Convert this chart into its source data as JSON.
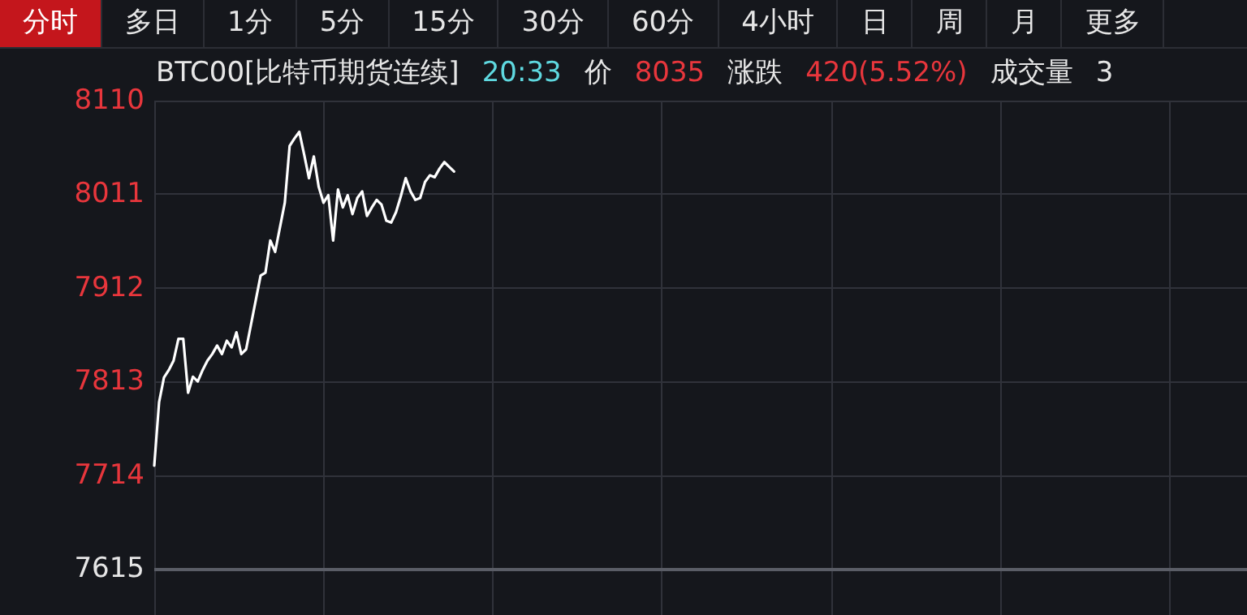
{
  "chart_data": {
    "type": "line",
    "title": "BTC00[比特币期货连续]",
    "annotations": [
      "分时",
      "多日",
      "1分",
      "5分",
      "15分",
      "30分",
      "60分",
      "4小时",
      "日",
      "周",
      "月",
      "更多",
      "20:33",
      "价",
      "8035",
      "涨跌",
      "420(5.52%)",
      "成交量",
      "3"
    ],
    "categories": [
      null,
      null,
      null,
      null,
      null,
      null,
      null,
      null,
      null,
      null,
      null,
      null,
      null,
      null,
      null,
      null,
      null,
      null,
      null,
      null,
      null,
      null,
      null,
      null,
      null,
      null,
      null,
      null,
      null,
      null,
      null,
      null,
      null,
      null,
      null,
      null,
      null,
      null,
      null,
      null,
      null,
      null,
      null,
      null,
      null,
      null,
      null,
      null,
      null,
      null,
      null,
      null,
      null,
      null,
      null,
      null,
      null,
      null,
      null,
      null,
      null,
      null,
      null,
      null,
      null,
      null,
      null,
      null,
      null,
      null,
      null,
      null,
      null,
      null,
      null,
      null,
      null,
      null,
      null,
      null,
      null,
      null,
      null,
      null,
      null,
      null,
      null,
      null,
      null,
      null,
      null,
      null,
      null,
      null,
      null,
      null,
      null,
      null,
      null,
      null,
      null,
      null,
      null,
      null,
      null,
      null,
      null,
      null,
      null,
      null,
      null,
      null,
      null,
      null,
      null,
      null,
      null,
      null,
      null,
      null,
      null,
      null,
      null,
      null,
      null,
      null,
      null,
      null,
      null,
      null,
      null,
      null,
      null,
      null,
      null,
      null,
      null,
      null,
      null,
      null,
      null,
      null,
      null,
      null,
      null,
      null,
      null,
      null,
      null,
      null,
      null,
      null,
      null,
      null,
      null,
      null,
      null,
      null,
      null,
      null,
      null,
      null,
      null,
      null,
      null,
      null,
      null,
      null,
      null,
      null,
      null,
      null,
      null,
      null,
      null,
      null,
      null,
      null,
      null,
      null,
      null,
      null,
      null,
      null,
      null,
      null,
      null,
      null,
      null,
      null,
      null,
      null,
      null,
      null,
      null,
      null,
      null,
      null,
      null,
      null,
      null,
      null,
      null,
      null,
      null,
      null,
      null,
      null,
      null,
      null,
      null,
      null,
      null,
      null,
      null,
      null,
      null,
      null,
      null,
      null,
      null,
      null,
      null,
      null,
      null,
      null,
      null
    ],
    "series": [
      {
        "color": "#ffffff",
        "values": [
          7724,
          7791,
          7817,
          7825,
          7835,
          7858,
          7858,
          7801,
          7818,
          7813,
          7825,
          7835,
          7842,
          7851,
          7842,
          7856,
          7849,
          7865,
          7842,
          7847,
          7873,
          7899,
          7925,
          7928,
          7962,
          7950,
          7976,
          8002,
          8062,
          8070,
          8077,
          8053,
          8028,
          8051,
          8019,
          8002,
          8010,
          7962,
          8016,
          7997,
          8010,
          7990,
          8007,
          8014,
          7988,
          7997,
          8005,
          8000,
          7983,
          7981,
          7992,
          8009,
          8028,
          8014,
          8005,
          8007,
          8024,
          8031,
          8029,
          8038,
          8045,
          8040,
          8035,
          null,
          null,
          null,
          null,
          null,
          null,
          null,
          null,
          null,
          null,
          null,
          null,
          null,
          null,
          null,
          null,
          null,
          null,
          null,
          null,
          null,
          null,
          null,
          null,
          null,
          null,
          null,
          null,
          null,
          null,
          null,
          null,
          null,
          null,
          null,
          null,
          null,
          null,
          null,
          null,
          null,
          null,
          null,
          null,
          null,
          null,
          null,
          null,
          null,
          null,
          null,
          null,
          null,
          null,
          null,
          null,
          null,
          null,
          null,
          null,
          null,
          null,
          null,
          null,
          null,
          null,
          null,
          null,
          null,
          null,
          null,
          null,
          null,
          null,
          null,
          null,
          null,
          null,
          null,
          null,
          null,
          null,
          null,
          null,
          null,
          null,
          null,
          null,
          null,
          null,
          null,
          null,
          null,
          null,
          null,
          null,
          null,
          null,
          null,
          null,
          null,
          null,
          null,
          null,
          null,
          null,
          null,
          null,
          null,
          null,
          null,
          null,
          null,
          null,
          null,
          null,
          null,
          null,
          null,
          null,
          null,
          null,
          null,
          null,
          null,
          null,
          null,
          null,
          null,
          null,
          null,
          null,
          null,
          null,
          null,
          null,
          null,
          null,
          null,
          null,
          null,
          null,
          null,
          null,
          null,
          null,
          null,
          null,
          null,
          null,
          null,
          null,
          null,
          null,
          null,
          null,
          null,
          null,
          null,
          null,
          null,
          null,
          null,
          null
        ]
      }
    ],
    "ylim": [
      7566,
      8110
    ],
    "yticks": [
      7615,
      7714,
      7813,
      7912,
      8011,
      8110
    ],
    "grid": true,
    "line_style": "solid",
    "ref_lines": [
      {
        "axis": "y",
        "value": 7615,
        "color": "#5a5d66"
      }
    ]
  }
}
